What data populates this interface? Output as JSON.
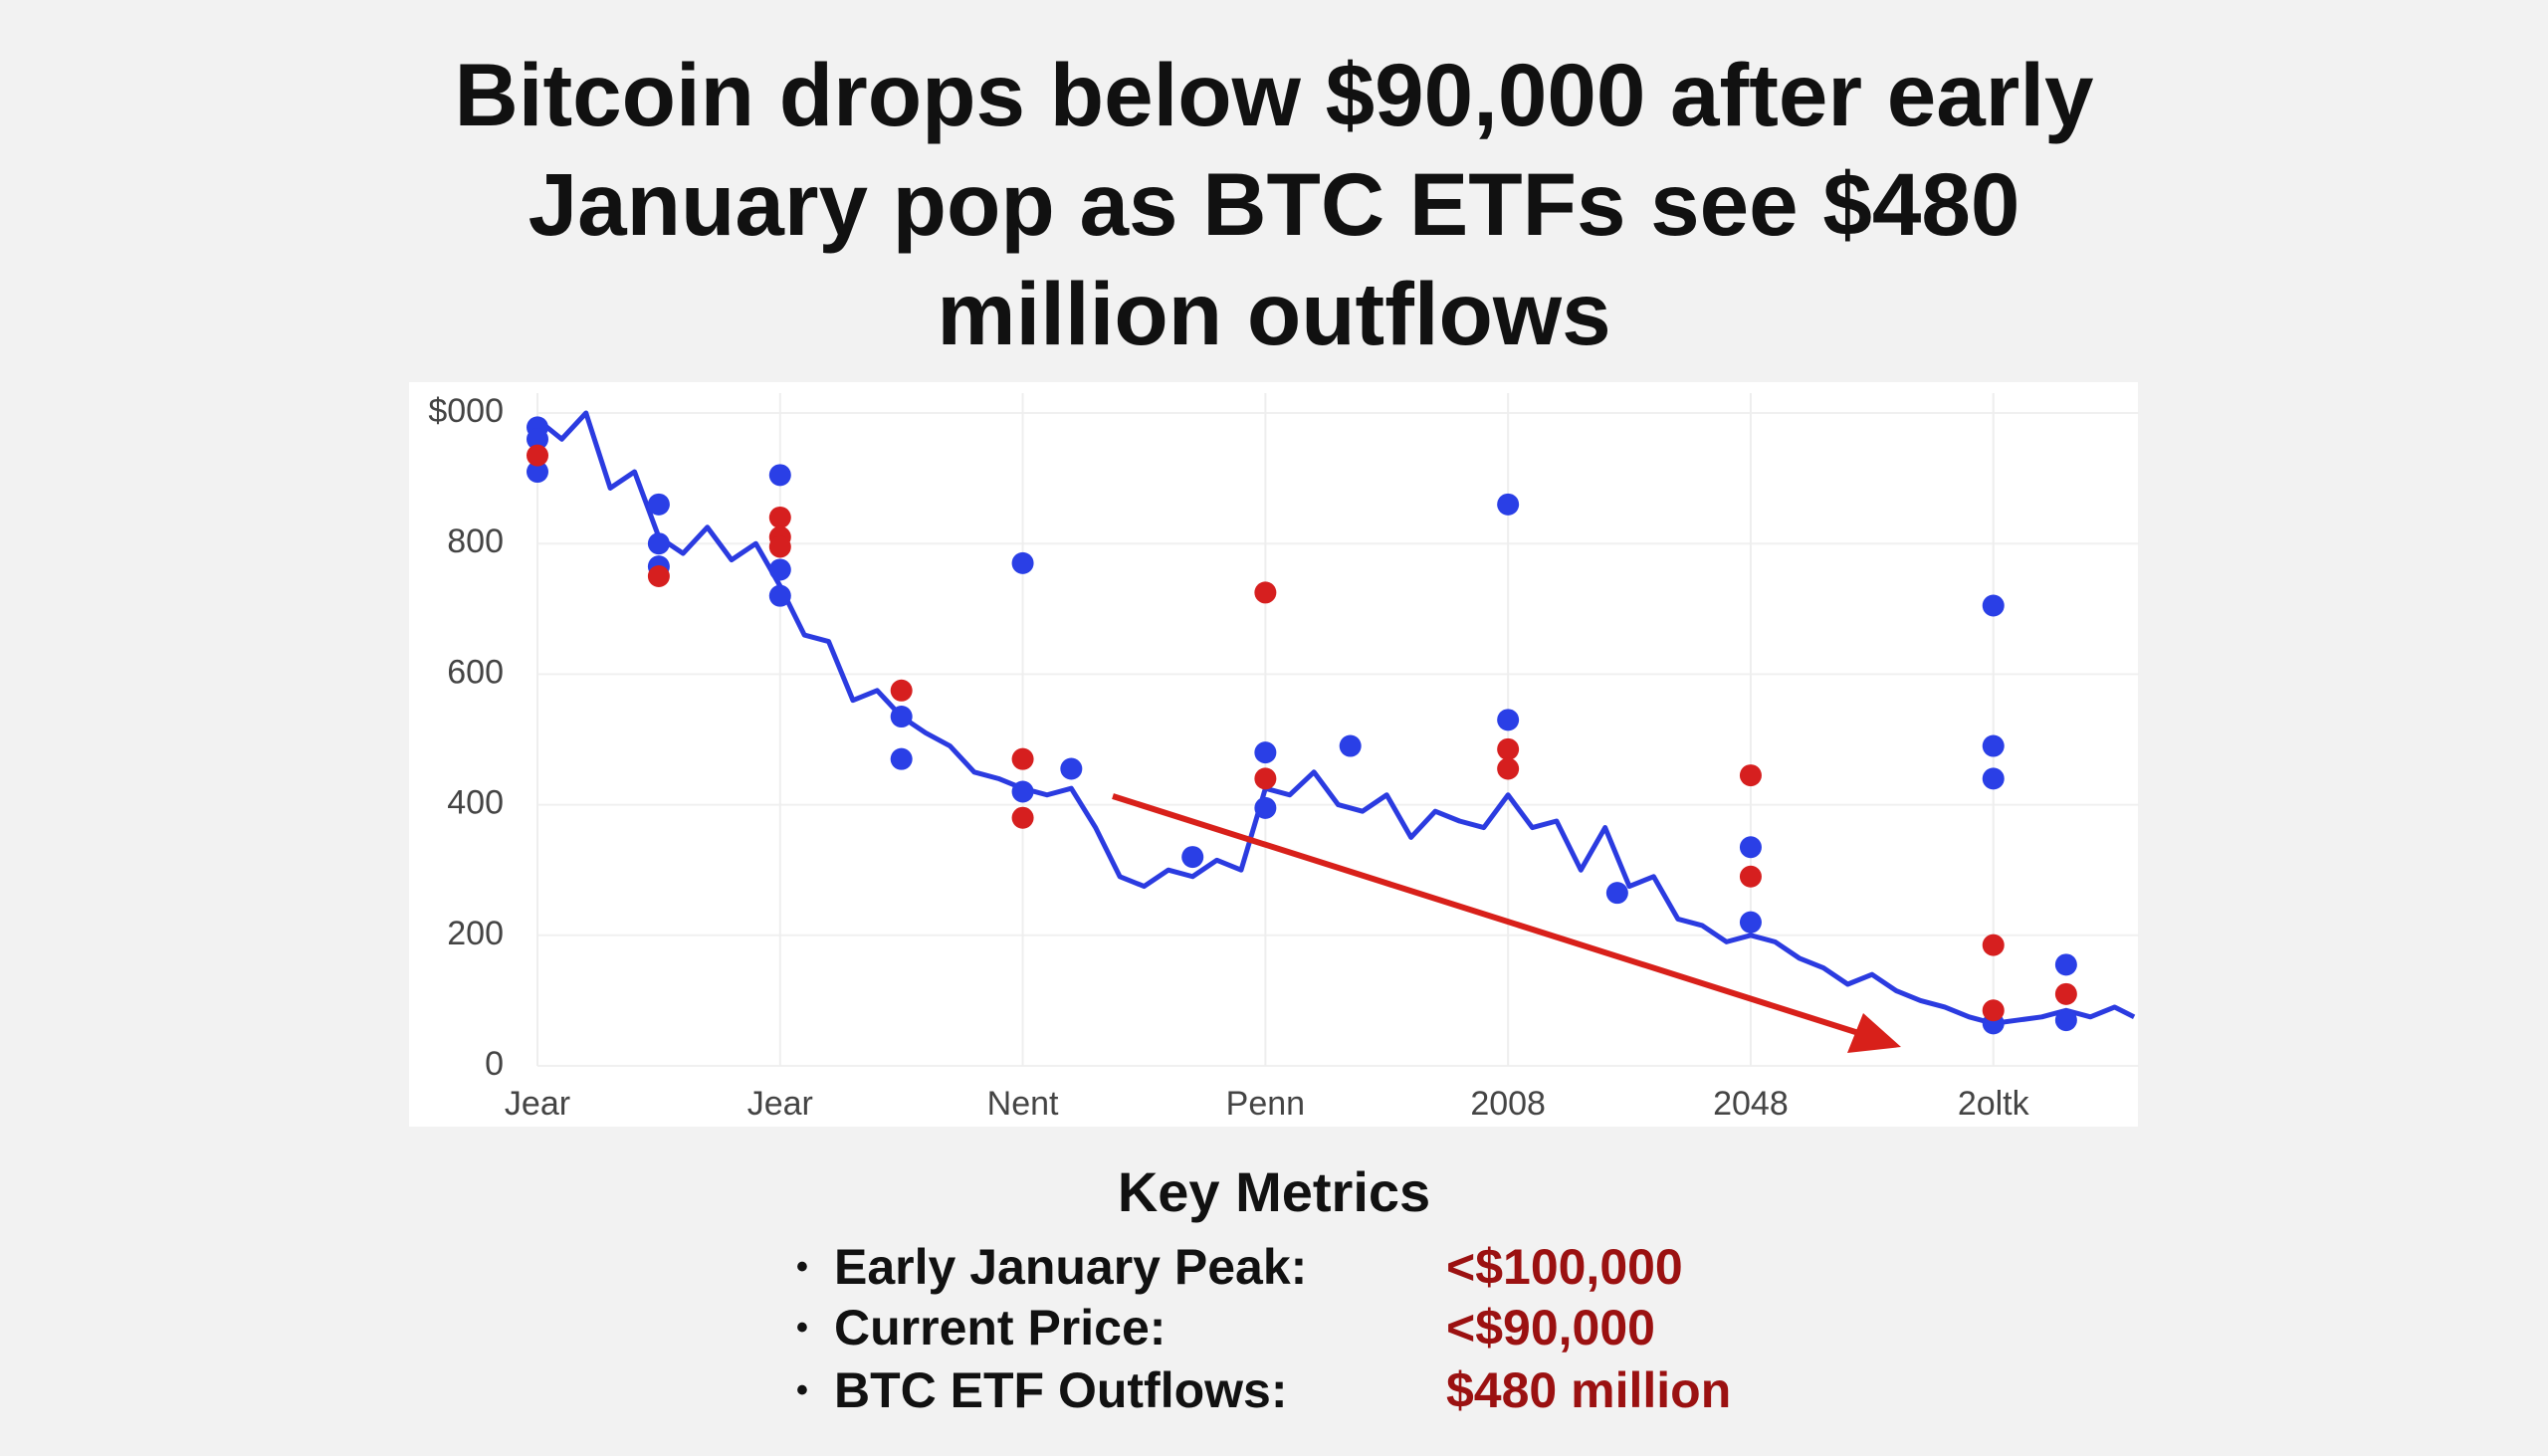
{
  "chart_data": {
    "type": "line",
    "title": "Bitcoin drops below $90,000 after early January pop as BTC ETFs see $480 million outflows",
    "xlim": [
      0,
      6.6
    ],
    "xticks": [
      {
        "value": 0,
        "label": "Jear"
      },
      {
        "value": 1,
        "label": "Jear"
      },
      {
        "value": 2,
        "label": "Nent"
      },
      {
        "value": 3,
        "label": "Penn"
      },
      {
        "value": 4,
        "label": "2008"
      },
      {
        "value": 5,
        "label": "2048"
      },
      {
        "value": 6,
        "label": "2oltk"
      }
    ],
    "ylim": [
      0,
      1000
    ],
    "yticks": [
      0,
      200,
      400,
      600,
      800,
      {
        "value": 1000,
        "label": "$000"
      }
    ],
    "grid": true,
    "series": [
      {
        "type": "line",
        "color": "#2b3be0",
        "x": [
          0,
          0.1,
          0.2,
          0.3,
          0.4,
          0.5,
          0.6,
          0.7,
          0.8,
          0.9,
          1.0,
          1.1,
          1.2,
          1.3,
          1.4,
          1.5,
          1.6,
          1.7,
          1.8,
          1.9,
          2.0,
          2.1,
          2.2,
          2.3,
          2.4,
          2.5,
          2.6,
          2.7,
          2.8,
          2.9,
          3.0,
          3.1,
          3.2,
          3.3,
          3.4,
          3.5,
          3.6,
          3.7,
          3.8,
          3.9,
          4.0,
          4.1,
          4.2,
          4.3,
          4.4,
          4.5,
          4.6,
          4.7,
          4.8,
          4.9,
          5.0,
          5.1,
          5.2,
          5.3,
          5.4,
          5.5,
          5.6,
          5.7,
          5.8,
          5.9,
          6.0,
          6.1,
          6.2,
          6.3,
          6.4,
          6.5,
          6.58
        ],
        "values": [
          990,
          960,
          1000,
          885,
          910,
          810,
          785,
          825,
          775,
          800,
          735,
          660,
          650,
          560,
          575,
          535,
          510,
          490,
          450,
          440,
          425,
          415,
          425,
          365,
          290,
          275,
          300,
          290,
          315,
          300,
          425,
          415,
          450,
          400,
          390,
          415,
          350,
          390,
          375,
          365,
          415,
          365,
          375,
          300,
          365,
          275,
          290,
          225,
          215,
          190,
          200,
          190,
          165,
          150,
          125,
          140,
          115,
          100,
          90,
          75,
          65,
          70,
          75,
          85,
          75,
          90,
          75
        ]
      },
      {
        "type": "scatter",
        "color": "#2a3fe6",
        "x": [
          0,
          0,
          0,
          0.5,
          0.5,
          0.5,
          1,
          1,
          1,
          1.5,
          1.5,
          2,
          2,
          2.2,
          2.7,
          3,
          3,
          3.35,
          4,
          4,
          4.45,
          5,
          5,
          6,
          6,
          6,
          6,
          6.3,
          6.3
        ],
        "values": [
          978,
          910,
          960,
          860,
          800,
          765,
          905,
          760,
          720,
          535,
          470,
          770,
          420,
          455,
          320,
          480,
          395,
          490,
          860,
          530,
          265,
          335,
          220,
          705,
          490,
          440,
          65,
          155,
          70
        ]
      },
      {
        "type": "scatter",
        "color": "#d61f1f",
        "x": [
          0,
          0.5,
          1,
          1,
          1,
          1.5,
          2,
          2,
          3,
          3,
          4,
          4,
          5,
          5,
          6,
          6,
          6.3
        ],
        "values": [
          935,
          750,
          840,
          810,
          795,
          575,
          470,
          380,
          725,
          440,
          485,
          455,
          445,
          290,
          185,
          85,
          110
        ]
      }
    ]
  },
  "key_metrics": {
    "title": "Key Metrics",
    "items": [
      {
        "label": "Early January Peak:",
        "value": "<$100,000"
      },
      {
        "label": "Current Price:",
        "value": "<$90,000"
      },
      {
        "label": "BTC ETF Outflows:",
        "value": "$480 million"
      }
    ]
  }
}
